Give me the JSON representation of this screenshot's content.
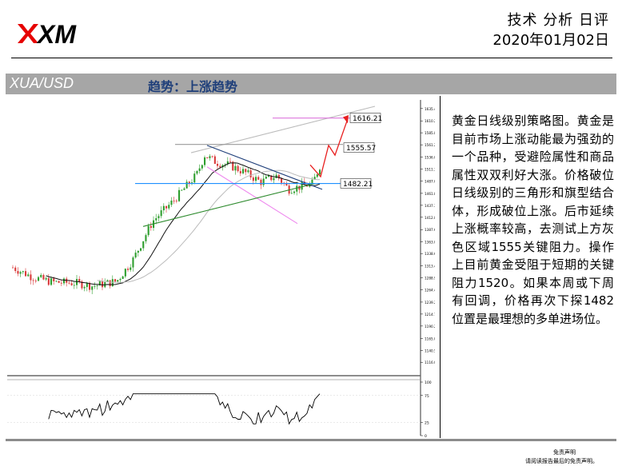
{
  "header": {
    "logo_text": "XM",
    "title": "技术 分析 日评",
    "date": "2020年01月02日"
  },
  "banner": {
    "symbol": "XUA/USD",
    "trend": "趋势：上涨趋势"
  },
  "chart_data": {
    "type": "candlestick",
    "instrument": "XUA/USD",
    "price_scale": [
      1635.4,
      1610.2,
      1585.8,
      1561.2,
      1536.0,
      1511.3,
      1487.0,
      1461.8,
      1437.3,
      1412.8,
      1387.6,
      1363.0,
      1338.6,
      1313.4,
      1288.9,
      1264.4,
      1239.2,
      1214.7,
      1190.2,
      1165.0,
      1140.5,
      1116.0
    ],
    "price_range": [
      1100,
      1640
    ],
    "annotations": [
      {
        "label": "1616.21",
        "value": 1616.21,
        "color": "#e070e0"
      },
      {
        "label": "1555.57",
        "value": 1555.57,
        "color": "#999999"
      },
      {
        "label": "1482.21",
        "value": 1482.21,
        "color": "#1e90ff"
      }
    ],
    "oscillator_scale": [
      "100",
      "75",
      "25",
      "0"
    ],
    "oscillator_range": [
      0,
      100
    ]
  },
  "description": "黄金日线级别策略图。黄金是目前市场上涨动能最为强劲的一个品种，受避险属性和商品属性双双利好大涨。价格破位日线级别的三角形和旗型结合体，形成破位上涨。后市延续上涨概率较高，去测试上方灰色区域1555关键阻力。操作上目前黄金受阻于短期的关键阻力1520。如果本周或下周有回调，价格再次下探1482位置是最理想的多单进场位。",
  "footer": {
    "disclaimer_title": "免责声明",
    "disclaimer_text": "请阅读报告最后的免责声明。"
  },
  "colors": {
    "banner_bg": "#a6a6a6",
    "trend_text": "#1f3f7a",
    "candle_up": "#2e9e2e",
    "candle_down": "#d93a3a",
    "logo_red": "#e60000"
  }
}
